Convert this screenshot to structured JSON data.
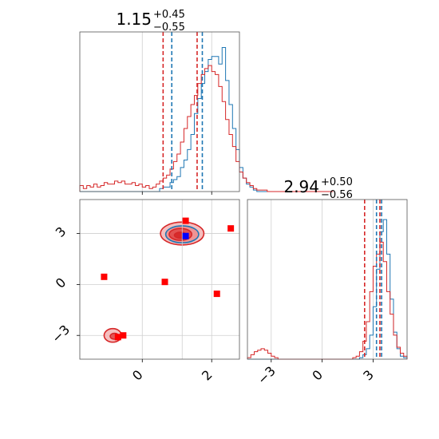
{
  "chart_data": [
    {
      "type": "histogram",
      "panel": "marginal-x",
      "title_value": "1.15",
      "title_plus": "+0.45",
      "title_minus": "−0.55",
      "xlim": [
        -1.8,
        2.8
      ],
      "x_ticks": [
        0,
        2
      ],
      "bins_x_start": -1.8,
      "bin_width": 0.1,
      "series": [
        {
          "color": "#1f77b4",
          "values": [
            0,
            0,
            0,
            0,
            0,
            0,
            0,
            0,
            0,
            0,
            0,
            0,
            0,
            0,
            0,
            0,
            0,
            0,
            0,
            0,
            0,
            0,
            0,
            0.02,
            0.03,
            0.03,
            0.06,
            0.08,
            0.1,
            0.16,
            0.21,
            0.28,
            0.38,
            0.52,
            0.62,
            0.72,
            0.8,
            0.88,
            0.9,
            0.9,
            0.85,
            0.96,
            0.74,
            0.58,
            0.42,
            0.28,
            0.16,
            0.09,
            0.05,
            0.03,
            0.01,
            0,
            0,
            0,
            0,
            0,
            0,
            0,
            0,
            0,
            0,
            0,
            0,
            0,
            0,
            0,
            0,
            0,
            0,
            0,
            0,
            0,
            0
          ]
        },
        {
          "color": "#d62728",
          "values": [
            0.04,
            0.02,
            0.04,
            0.03,
            0.05,
            0.03,
            0.04,
            0.06,
            0.05,
            0.05,
            0.07,
            0.06,
            0.07,
            0.05,
            0.05,
            0.06,
            0.04,
            0.05,
            0.03,
            0.04,
            0.02,
            0.03,
            0.05,
            0.07,
            0.09,
            0.11,
            0.15,
            0.2,
            0.25,
            0.33,
            0.42,
            0.5,
            0.58,
            0.64,
            0.72,
            0.78,
            0.82,
            0.84,
            0.8,
            0.78,
            0.7,
            0.6,
            0.48,
            0.38,
            0.3,
            0.2,
            0.13,
            0.09,
            0.06,
            0.04,
            0.02,
            0.01,
            0.01,
            0.01,
            0,
            0,
            0,
            0,
            0,
            0,
            0,
            0,
            0,
            0,
            0,
            0,
            0,
            0,
            0,
            0,
            0,
            0,
            0
          ]
        }
      ],
      "vlines": [
        {
          "x": 0.6,
          "color": "#d62728",
          "style": "dashed"
        },
        {
          "x": 0.85,
          "color": "#1f77b4",
          "style": "dashed"
        },
        {
          "x": 1.58,
          "color": "#d62728",
          "style": "dashed"
        },
        {
          "x": 1.73,
          "color": "#1f77b4",
          "style": "dashed"
        }
      ]
    },
    {
      "type": "histogram",
      "panel": "marginal-y",
      "title_value": "2.94",
      "title_plus": "+0.50",
      "title_minus": "−0.56",
      "xlim": [
        -4.4,
        5.0
      ],
      "x_ticks": [
        -3,
        0,
        3
      ],
      "x_tick_labels": [
        "−3",
        "0",
        "3"
      ],
      "bins_x_start": -4.4,
      "bin_width": 0.2,
      "series": [
        {
          "color": "#1f77b4",
          "values": [
            0,
            0,
            0,
            0,
            0,
            0,
            0,
            0,
            0,
            0,
            0,
            0,
            0,
            0,
            0,
            0,
            0,
            0,
            0,
            0,
            0,
            0,
            0,
            0,
            0,
            0,
            0,
            0,
            0,
            0,
            0,
            0,
            0,
            0.01,
            0.03,
            0.07,
            0.16,
            0.35,
            0.6,
            0.85,
            0.93,
            0.7,
            0.4,
            0.18,
            0.07,
            0.02,
            0.01
          ]
        },
        {
          "color": "#d62728",
          "values": [
            0.01,
            0.03,
            0.05,
            0.06,
            0.07,
            0.06,
            0.04,
            0.02,
            0.01,
            0,
            0,
            0,
            0,
            0,
            0,
            0,
            0,
            0,
            0,
            0,
            0,
            0,
            0,
            0,
            0,
            0,
            0,
            0,
            0,
            0,
            0,
            0.01,
            0.02,
            0.05,
            0.12,
            0.25,
            0.45,
            0.62,
            0.7,
            0.78,
            0.65,
            0.45,
            0.3,
            0.16,
            0.08,
            0.04,
            0.02
          ]
        }
      ],
      "vlines": [
        {
          "x": 2.5,
          "color": "#d62728",
          "style": "dashed"
        },
        {
          "x": 3.2,
          "color": "#1f77b4",
          "style": "dashed"
        },
        {
          "x": 3.4,
          "color": "#d62728",
          "style": "dashed"
        },
        {
          "x": 3.5,
          "color": "#1f77b4",
          "style": "dashed"
        }
      ]
    },
    {
      "type": "scatter",
      "panel": "joint",
      "xlim": [
        -1.8,
        2.8
      ],
      "ylim": [
        -4.4,
        5.0
      ],
      "x_ticks": [
        0,
        2
      ],
      "x_tick_labels": [
        "0",
        "2"
      ],
      "y_ticks": [
        -3,
        0,
        3
      ],
      "y_tick_labels": [
        "−3",
        "0",
        "3"
      ],
      "crosshair": {
        "x": 1.15,
        "y": 2.94
      },
      "contours": [
        {
          "cx": 1.15,
          "cy": 3.0,
          "rx": 1.25,
          "ry": 1.35,
          "fill": "#f4b8b8",
          "stroke": "#d62728"
        },
        {
          "cx": 1.15,
          "cy": 2.95,
          "rx": 0.95,
          "ry": 1.0,
          "fill": "#ee8f8f",
          "stroke": "#1f77b4"
        },
        {
          "cx": 1.1,
          "cy": 2.95,
          "rx": 0.65,
          "ry": 0.7,
          "fill": "#e04a4a",
          "stroke": "#d62728"
        },
        {
          "cx": 1.1,
          "cy": 2.9,
          "rx": 0.35,
          "ry": 0.35,
          "fill": "#d62728",
          "stroke": "#d62728"
        },
        {
          "cx": -0.85,
          "cy": -3.0,
          "rx": 0.5,
          "ry": 0.8,
          "fill": "#f4b8b8",
          "stroke": "#d62728"
        },
        {
          "cx": -0.8,
          "cy": -3.05,
          "rx": 0.25,
          "ry": 0.35,
          "fill": "#e04a4a",
          "stroke": "#d62728"
        }
      ],
      "red_points": [
        {
          "x": 1.25,
          "y": 3.75
        },
        {
          "x": 2.55,
          "y": 3.3
        },
        {
          "x": -1.1,
          "y": 0.45
        },
        {
          "x": 0.65,
          "y": 0.15
        },
        {
          "x": 2.15,
          "y": -0.55
        },
        {
          "x": -0.55,
          "y": -3.0
        },
        {
          "x": -0.7,
          "y": -3.1
        }
      ],
      "blue_points": [
        {
          "x": 1.25,
          "y": 2.85
        }
      ]
    }
  ]
}
